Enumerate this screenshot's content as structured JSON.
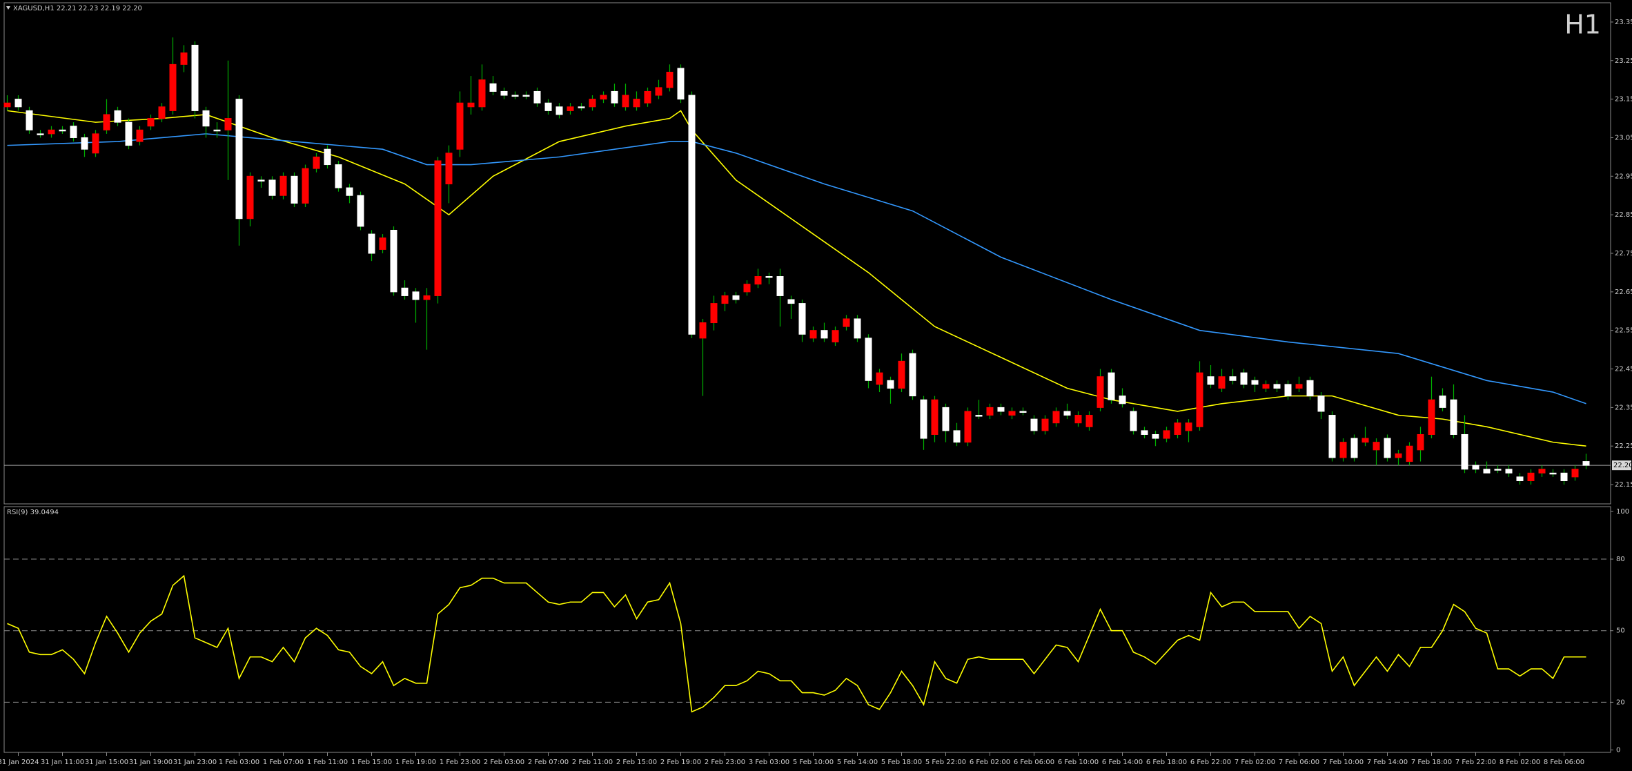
{
  "chart_data": [
    {
      "type": "candlestick",
      "header": "XAGUSD,H1  22.21 22.23 22.19 22.20",
      "title": "H1",
      "title_color": "#e00000",
      "up_color": "#ff0000",
      "down_color": "#ffffff",
      "wick_color": "#00b000",
      "ylim": [
        22.1,
        23.4
      ],
      "yticks": [
        23.35,
        23.25,
        23.15,
        23.05,
        22.95,
        22.85,
        22.75,
        22.65,
        22.55,
        22.45,
        22.35,
        22.25,
        22.15
      ],
      "current_price": {
        "value": 22.2,
        "label": "22.20"
      },
      "categories": [
        null,
        "31 Jan 2024",
        null,
        null,
        null,
        "31 Jan 11:00",
        null,
        null,
        null,
        "31 Jan 15:00",
        null,
        null,
        null,
        "31 Jan 19:00",
        null,
        null,
        null,
        "31 Jan 23:00",
        null,
        null,
        null,
        "1 Feb 03:00",
        null,
        null,
        null,
        "1 Feb 07:00",
        null,
        null,
        null,
        "1 Feb 11:00",
        null,
        null,
        null,
        "1 Feb 15:00",
        null,
        null,
        null,
        "1 Feb 19:00",
        null,
        null,
        null,
        "1 Feb 23:00",
        null,
        null,
        null,
        "2 Feb 03:00",
        null,
        null,
        null,
        "2 Feb 07:00",
        null,
        null,
        null,
        "2 Feb 11:00",
        null,
        null,
        null,
        "2 Feb 15:00",
        null,
        null,
        null,
        "2 Feb 19:00",
        null,
        null,
        null,
        "2 Feb 23:00",
        null,
        null,
        null,
        "3 Feb 03:00",
        null,
        null,
        null,
        "5 Feb 10:00",
        null,
        null,
        null,
        "5 Feb 14:00",
        null,
        null,
        null,
        "5 Feb 18:00",
        null,
        null,
        null,
        "5 Feb 22:00",
        null,
        null,
        null,
        "6 Feb 02:00",
        null,
        null,
        null,
        "6 Feb 06:00",
        null,
        null,
        null,
        "6 Feb 10:00",
        null,
        null,
        null,
        "6 Feb 14:00",
        null,
        null,
        null,
        "6 Feb 18:00",
        null,
        null,
        null,
        "6 Feb 22:00",
        null,
        null,
        null,
        "7 Feb 02:00",
        null,
        null,
        null,
        "7 Feb 06:00",
        null,
        null,
        null,
        "7 Feb 10:00",
        null,
        null,
        null,
        "7 Feb 14:00",
        null,
        null,
        null,
        "7 Feb 18:00",
        null,
        null,
        null,
        "7 Feb 22:00",
        null,
        null,
        null,
        "8 Feb 02:00",
        null,
        null,
        null,
        "8 Feb 06:00",
        null,
        null
      ],
      "ohlc": [
        [
          23.13,
          23.16,
          23.12,
          23.14
        ],
        [
          23.15,
          23.16,
          23.12,
          23.13
        ],
        [
          23.12,
          23.13,
          23.06,
          23.07
        ],
        [
          23.06,
          23.07,
          23.05,
          23.06
        ],
        [
          23.06,
          23.08,
          23.05,
          23.07
        ],
        [
          23.07,
          23.08,
          23.06,
          23.07
        ],
        [
          23.08,
          23.09,
          23.04,
          23.05
        ],
        [
          23.05,
          23.06,
          23.0,
          23.02
        ],
        [
          23.01,
          23.07,
          23.0,
          23.06
        ],
        [
          23.07,
          23.15,
          23.06,
          23.11
        ],
        [
          23.12,
          23.13,
          23.08,
          23.09
        ],
        [
          23.09,
          23.1,
          23.02,
          23.03
        ],
        [
          23.04,
          23.08,
          23.03,
          23.07
        ],
        [
          23.08,
          23.11,
          23.07,
          23.1
        ],
        [
          23.1,
          23.14,
          23.09,
          23.13
        ],
        [
          23.12,
          23.31,
          23.11,
          23.24
        ],
        [
          23.24,
          23.29,
          23.22,
          23.27
        ],
        [
          23.29,
          23.3,
          23.1,
          23.12
        ],
        [
          23.12,
          23.13,
          23.05,
          23.08
        ],
        [
          23.07,
          23.09,
          23.05,
          23.07
        ],
        [
          23.07,
          23.25,
          22.94,
          23.1
        ],
        [
          23.15,
          23.16,
          22.77,
          22.84
        ],
        [
          22.84,
          22.96,
          22.82,
          22.95
        ],
        [
          22.94,
          22.95,
          22.92,
          22.94
        ],
        [
          22.94,
          22.95,
          22.89,
          22.9
        ],
        [
          22.9,
          22.96,
          22.89,
          22.95
        ],
        [
          22.95,
          22.96,
          22.87,
          22.88
        ],
        [
          22.88,
          22.98,
          22.87,
          22.97
        ],
        [
          22.97,
          23.01,
          22.96,
          23.0
        ],
        [
          23.02,
          23.03,
          22.97,
          22.98
        ],
        [
          22.98,
          22.99,
          22.91,
          22.92
        ],
        [
          22.92,
          22.93,
          22.88,
          22.9
        ],
        [
          22.9,
          22.91,
          22.81,
          22.82
        ],
        [
          22.8,
          22.81,
          22.73,
          22.75
        ],
        [
          22.76,
          22.8,
          22.75,
          22.79
        ],
        [
          22.81,
          22.82,
          22.64,
          22.65
        ],
        [
          22.66,
          22.68,
          22.63,
          22.64
        ],
        [
          22.65,
          22.66,
          22.57,
          22.63
        ],
        [
          22.63,
          22.66,
          22.5,
          22.64
        ],
        [
          22.64,
          23.0,
          22.62,
          22.99
        ],
        [
          22.93,
          23.03,
          22.88,
          23.01
        ],
        [
          23.02,
          23.17,
          23.0,
          23.14
        ],
        [
          23.13,
          23.21,
          23.11,
          23.14
        ],
        [
          23.13,
          23.24,
          23.12,
          23.2
        ],
        [
          23.19,
          23.21,
          23.16,
          23.17
        ],
        [
          23.17,
          23.18,
          23.15,
          23.16
        ],
        [
          23.16,
          23.17,
          23.15,
          23.16
        ],
        [
          23.16,
          23.17,
          23.15,
          23.16
        ],
        [
          23.17,
          23.18,
          23.13,
          23.14
        ],
        [
          23.14,
          23.15,
          23.11,
          23.12
        ],
        [
          23.13,
          23.14,
          23.1,
          23.11
        ],
        [
          23.12,
          23.14,
          23.11,
          23.13
        ],
        [
          23.13,
          23.14,
          23.12,
          23.13
        ],
        [
          23.13,
          23.16,
          23.12,
          23.15
        ],
        [
          23.15,
          23.17,
          23.14,
          23.16
        ],
        [
          23.17,
          23.19,
          23.13,
          23.14
        ],
        [
          23.13,
          23.19,
          23.12,
          23.16
        ],
        [
          23.13,
          23.17,
          23.12,
          23.15
        ],
        [
          23.14,
          23.18,
          23.13,
          23.17
        ],
        [
          23.16,
          23.2,
          23.15,
          23.18
        ],
        [
          23.18,
          23.24,
          23.17,
          23.22
        ],
        [
          23.23,
          23.24,
          23.14,
          23.15
        ],
        [
          23.16,
          23.17,
          22.53,
          22.54
        ],
        [
          22.53,
          22.58,
          22.38,
          22.57
        ],
        [
          22.57,
          22.64,
          22.55,
          22.62
        ],
        [
          22.62,
          22.65,
          22.6,
          22.64
        ],
        [
          22.64,
          22.65,
          22.62,
          22.63
        ],
        [
          22.65,
          22.68,
          22.64,
          22.67
        ],
        [
          22.67,
          22.71,
          22.66,
          22.69
        ],
        [
          22.69,
          22.7,
          22.67,
          22.69
        ],
        [
          22.69,
          22.71,
          22.56,
          22.64
        ],
        [
          22.63,
          22.64,
          22.58,
          22.62
        ],
        [
          22.62,
          22.63,
          22.52,
          22.54
        ],
        [
          22.53,
          22.56,
          22.52,
          22.55
        ],
        [
          22.55,
          22.57,
          22.52,
          22.53
        ],
        [
          22.52,
          22.56,
          22.51,
          22.55
        ],
        [
          22.56,
          22.59,
          22.55,
          22.58
        ],
        [
          22.58,
          22.59,
          22.52,
          22.53
        ],
        [
          22.53,
          22.54,
          22.4,
          22.42
        ],
        [
          22.41,
          22.45,
          22.39,
          22.44
        ],
        [
          22.42,
          22.43,
          22.36,
          22.4
        ],
        [
          22.4,
          22.49,
          22.39,
          22.47
        ],
        [
          22.49,
          22.5,
          22.37,
          22.38
        ],
        [
          22.37,
          22.38,
          22.24,
          22.27
        ],
        [
          22.28,
          22.38,
          22.26,
          22.37
        ],
        [
          22.35,
          22.36,
          22.26,
          22.29
        ],
        [
          22.29,
          22.31,
          22.25,
          22.26
        ],
        [
          22.26,
          22.35,
          22.25,
          22.34
        ],
        [
          22.33,
          22.37,
          22.32,
          22.33
        ],
        [
          22.33,
          22.36,
          22.32,
          22.35
        ],
        [
          22.35,
          22.36,
          22.33,
          22.34
        ],
        [
          22.33,
          22.35,
          22.32,
          22.34
        ],
        [
          22.34,
          22.35,
          22.33,
          22.34
        ],
        [
          22.32,
          22.33,
          22.28,
          22.29
        ],
        [
          22.29,
          22.33,
          22.28,
          22.32
        ],
        [
          22.31,
          22.35,
          22.3,
          22.34
        ],
        [
          22.34,
          22.36,
          22.32,
          22.33
        ],
        [
          22.31,
          22.34,
          22.3,
          22.33
        ],
        [
          22.3,
          22.34,
          22.29,
          22.33
        ],
        [
          22.35,
          22.45,
          22.34,
          22.43
        ],
        [
          22.44,
          22.45,
          22.36,
          22.37
        ],
        [
          22.38,
          22.4,
          22.35,
          22.36
        ],
        [
          22.34,
          22.35,
          22.28,
          22.29
        ],
        [
          22.29,
          22.3,
          22.27,
          22.28
        ],
        [
          22.28,
          22.29,
          22.25,
          22.27
        ],
        [
          22.27,
          22.3,
          22.26,
          22.29
        ],
        [
          22.28,
          22.32,
          22.27,
          22.31
        ],
        [
          22.29,
          22.32,
          22.26,
          22.31
        ],
        [
          22.3,
          22.47,
          22.29,
          22.44
        ],
        [
          22.43,
          22.46,
          22.4,
          22.41
        ],
        [
          22.4,
          22.45,
          22.39,
          22.43
        ],
        [
          22.43,
          22.45,
          22.41,
          22.42
        ],
        [
          22.44,
          22.45,
          22.4,
          22.41
        ],
        [
          22.42,
          22.43,
          22.39,
          22.41
        ],
        [
          22.4,
          22.42,
          22.39,
          22.41
        ],
        [
          22.41,
          22.42,
          22.39,
          22.4
        ],
        [
          22.41,
          22.42,
          22.37,
          22.38
        ],
        [
          22.4,
          22.43,
          22.39,
          22.41
        ],
        [
          22.42,
          22.43,
          22.37,
          22.38
        ],
        [
          22.38,
          22.39,
          22.32,
          22.34
        ],
        [
          22.33,
          22.34,
          22.21,
          22.22
        ],
        [
          22.22,
          22.27,
          22.21,
          22.26
        ],
        [
          22.27,
          22.28,
          22.21,
          22.22
        ],
        [
          22.26,
          22.3,
          22.25,
          22.27
        ],
        [
          22.24,
          22.27,
          22.2,
          22.26
        ],
        [
          22.27,
          22.28,
          22.21,
          22.22
        ],
        [
          22.22,
          22.24,
          22.2,
          22.23
        ],
        [
          22.21,
          22.26,
          22.2,
          22.25
        ],
        [
          22.24,
          22.3,
          22.21,
          22.28
        ],
        [
          22.28,
          22.43,
          22.27,
          22.37
        ],
        [
          22.38,
          22.4,
          22.34,
          22.35
        ],
        [
          22.37,
          22.41,
          22.27,
          22.28
        ],
        [
          22.28,
          22.33,
          22.18,
          22.19
        ],
        [
          22.2,
          22.21,
          22.18,
          22.19
        ],
        [
          22.19,
          22.21,
          22.18,
          22.18
        ],
        [
          22.19,
          22.2,
          22.18,
          22.19
        ],
        [
          22.19,
          22.2,
          22.17,
          22.18
        ],
        [
          22.17,
          22.18,
          22.15,
          22.16
        ],
        [
          22.16,
          22.19,
          22.15,
          22.18
        ],
        [
          22.18,
          22.2,
          22.17,
          22.19
        ],
        [
          22.18,
          22.19,
          22.17,
          22.18
        ],
        [
          22.18,
          22.19,
          22.15,
          22.16
        ],
        [
          22.17,
          22.2,
          22.16,
          22.19
        ],
        [
          22.21,
          22.23,
          22.19,
          22.2
        ]
      ],
      "lines": [
        {
          "color": "#ffff00",
          "x": [
            0,
            8,
            14,
            18,
            24,
            30,
            36,
            40,
            44,
            50,
            56,
            60,
            61,
            62,
            66,
            72,
            78,
            84,
            90,
            96,
            100,
            106,
            110,
            116,
            120,
            126,
            130,
            134,
            140,
            143
          ],
          "values": [
            23.12,
            23.09,
            23.1,
            23.11,
            23.05,
            23.0,
            22.93,
            22.85,
            22.95,
            23.04,
            23.08,
            23.1,
            23.12,
            23.07,
            22.94,
            22.82,
            22.7,
            22.56,
            22.48,
            22.4,
            22.37,
            22.34,
            22.36,
            22.38,
            22.38,
            22.33,
            22.32,
            22.3,
            22.26,
            22.25
          ]
        },
        {
          "color": "#3399ff",
          "x": [
            0,
            10,
            18,
            26,
            34,
            38,
            42,
            50,
            60,
            62,
            66,
            74,
            82,
            90,
            100,
            108,
            116,
            126,
            134,
            140,
            143
          ],
          "values": [
            23.03,
            23.04,
            23.06,
            23.04,
            23.02,
            22.98,
            22.98,
            23.0,
            23.04,
            23.04,
            23.01,
            22.93,
            22.86,
            22.74,
            22.63,
            22.55,
            22.52,
            22.49,
            22.42,
            22.39,
            22.36
          ]
        }
      ]
    },
    {
      "type": "line",
      "title": "RSI(9) 39.0494",
      "color": "#ffff00",
      "ylim": [
        -1,
        102
      ],
      "yticks": [
        100,
        80,
        50,
        20,
        0
      ],
      "levels": [
        80,
        50,
        20
      ],
      "values": [
        53,
        51,
        41,
        40,
        40,
        42,
        38,
        32,
        45,
        56,
        49,
        41,
        49,
        54,
        57,
        69,
        73,
        47,
        45,
        43,
        51,
        30,
        39,
        39,
        37,
        43,
        37,
        47,
        51,
        48,
        42,
        41,
        35,
        32,
        37,
        27,
        30,
        28,
        28,
        57,
        61,
        68,
        69,
        72,
        72,
        70,
        70,
        70,
        66,
        62,
        61,
        62,
        62,
        66,
        66,
        60,
        65,
        55,
        62,
        63,
        70,
        53,
        16,
        18,
        22,
        27,
        27,
        29,
        33,
        32,
        29,
        29,
        24,
        24,
        23,
        25,
        30,
        27,
        19,
        17,
        24,
        33,
        27,
        19,
        37,
        30,
        28,
        38,
        39,
        38,
        38,
        38,
        38,
        32,
        38,
        44,
        43,
        37,
        48,
        59,
        50,
        50,
        41,
        39,
        36,
        41,
        46,
        48,
        46,
        66,
        60,
        62,
        62,
        58,
        58,
        58,
        58,
        51,
        56,
        53,
        33,
        39,
        27,
        33,
        39,
        33,
        40,
        35,
        43,
        43,
        50,
        61,
        58,
        51,
        49,
        34,
        34,
        31,
        34,
        34,
        30,
        39,
        39,
        39
      ]
    }
  ]
}
